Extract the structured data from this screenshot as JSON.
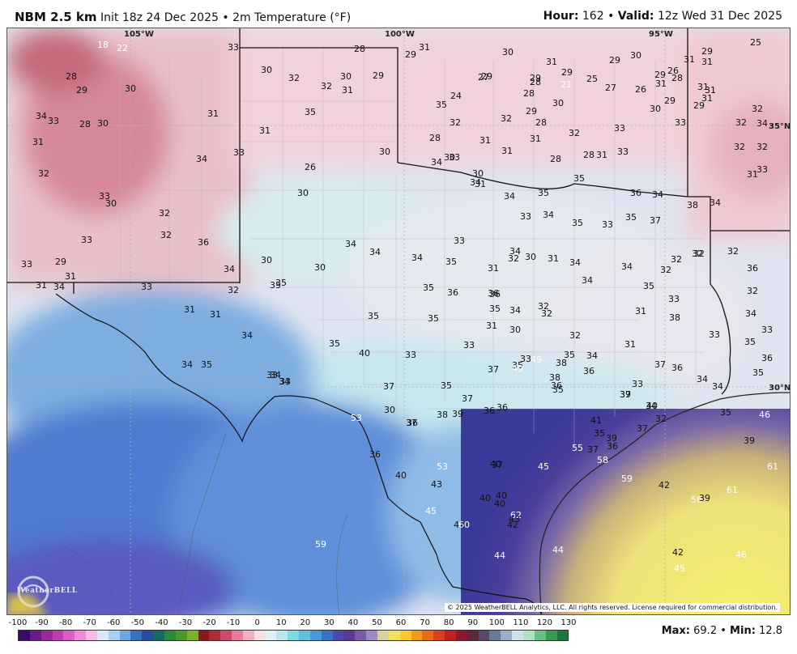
{
  "header": {
    "model": "NBM 2.5 km",
    "init": "Init 18z 24 Dec 2025",
    "separator": "•",
    "variable": "2m Temperature (°F)",
    "hour_label": "Hour:",
    "hour_value": "162",
    "valid_label": "Valid:",
    "valid_value": "12z Wed 31 Dec 2025"
  },
  "map": {
    "longitude_labels": [
      "105°W",
      "100°W",
      "95°W"
    ],
    "latitude_labels": [
      "35°N",
      "30°N"
    ],
    "logo_text": "WeatherBELL",
    "copyright": "© 2025 WeatherBELL Analytics, LLC. All rights reserved. License required for commercial distribution.",
    "temperature_labels": [
      "18",
      "22",
      "33",
      "28",
      "29",
      "31",
      "30",
      "31",
      "29",
      "30",
      "31",
      "29",
      "25",
      "28",
      "29",
      "30",
      "30",
      "32",
      "32",
      "30",
      "29",
      "31",
      "29",
      "29",
      "29",
      "25",
      "29",
      "26",
      "31",
      "31",
      "31",
      "31",
      "27",
      "28",
      "21",
      "27",
      "26",
      "28",
      "31",
      "34",
      "33",
      "28",
      "30",
      "31",
      "35",
      "35",
      "24",
      "28",
      "30",
      "29",
      "29",
      "31",
      "31",
      "32",
      "32",
      "29",
      "28",
      "32",
      "31",
      "33",
      "30",
      "33",
      "32",
      "32",
      "33",
      "34",
      "33",
      "26",
      "30",
      "28",
      "30",
      "33",
      "31",
      "31",
      "31",
      "28",
      "28",
      "33",
      "34",
      "32",
      "33",
      "30",
      "32",
      "30",
      "34",
      "34",
      "30",
      "31",
      "34",
      "35",
      "35",
      "36",
      "34",
      "38",
      "34",
      "32",
      "32",
      "31",
      "33",
      "29",
      "33",
      "32",
      "36",
      "34",
      "30",
      "30",
      "34",
      "34",
      "34",
      "35",
      "33",
      "36",
      "34",
      "33",
      "34",
      "35",
      "33",
      "35",
      "37",
      "32",
      "32",
      "36",
      "32",
      "31",
      "34",
      "31",
      "33",
      "32",
      "35",
      "35",
      "35",
      "35",
      "36",
      "31",
      "32",
      "30",
      "31",
      "34",
      "34",
      "34",
      "35",
      "32",
      "32",
      "33",
      "32",
      "34",
      "33",
      "31",
      "31",
      "34",
      "35",
      "40",
      "33",
      "35",
      "36",
      "35",
      "34",
      "32",
      "32",
      "32",
      "35",
      "34",
      "31",
      "31",
      "37",
      "38",
      "33",
      "35",
      "36",
      "34",
      "35",
      "33",
      "33",
      "37",
      "35",
      "33",
      "31",
      "30",
      "33",
      "38",
      "35",
      "36",
      "39",
      "33",
      "34",
      "36",
      "34",
      "34",
      "35",
      "34",
      "34",
      "30",
      "37",
      "38",
      "39",
      "37",
      "36",
      "36",
      "37",
      "35",
      "36",
      "37",
      "32",
      "35",
      "46",
      "49",
      "49",
      "38",
      "37",
      "35",
      "36",
      "41",
      "39",
      "37",
      "37",
      "40",
      "53",
      "36",
      "36",
      "53",
      "40",
      "55",
      "39",
      "40",
      "43",
      "41",
      "58",
      "60",
      "59",
      "56",
      "40",
      "40",
      "45",
      "40",
      "42",
      "39",
      "61",
      "61",
      "59",
      "62",
      "42",
      "43",
      "45",
      "44",
      "42",
      "46",
      "44",
      "45"
    ]
  },
  "scale": {
    "ticks": [
      "-100",
      "-90",
      "-80",
      "-70",
      "-60",
      "-50",
      "-40",
      "-30",
      "-20",
      "-10",
      "0",
      "10",
      "20",
      "30",
      "40",
      "50",
      "60",
      "70",
      "80",
      "90",
      "100",
      "110",
      "120",
      "130"
    ],
    "colors": [
      "#3a0a6a",
      "#6a1a8a",
      "#9a2a9a",
      "#c43ab0",
      "#e05ac8",
      "#f08ad8",
      "#f8b8e8",
      "#d8e8f8",
      "#a8d0f0",
      "#6aa8e0",
      "#3a70c0",
      "#2a4a9a",
      "#1a6a5a",
      "#2a8a3a",
      "#4a9a2a",
      "#7ab02a",
      "#8a1a1a",
      "#b02a3a",
      "#d04a6a",
      "#e87a9a",
      "#f0b0c0",
      "#f8e0e4",
      "#e0f0f4",
      "#b8e8ec",
      "#80d8e0",
      "#60c0e0",
      "#4a98d8",
      "#3a70c8",
      "#4a4ab0",
      "#5a3a98",
      "#7a5aa8",
      "#a088c0",
      "#d8d0a0",
      "#f0e060",
      "#f8c830",
      "#f09a20",
      "#e86a18",
      "#d84020",
      "#c02020",
      "#8a1a2a",
      "#5a2a3a",
      "#5a4a6a",
      "#6a7a9a",
      "#9ab0c8",
      "#d0e0e8",
      "#b0e0c0",
      "#6ac080",
      "#3a9a50",
      "#1a7a3a"
    ],
    "max_label": "Max:",
    "max_value": "69.2",
    "min_label": "Min:",
    "min_value": "12.8"
  }
}
